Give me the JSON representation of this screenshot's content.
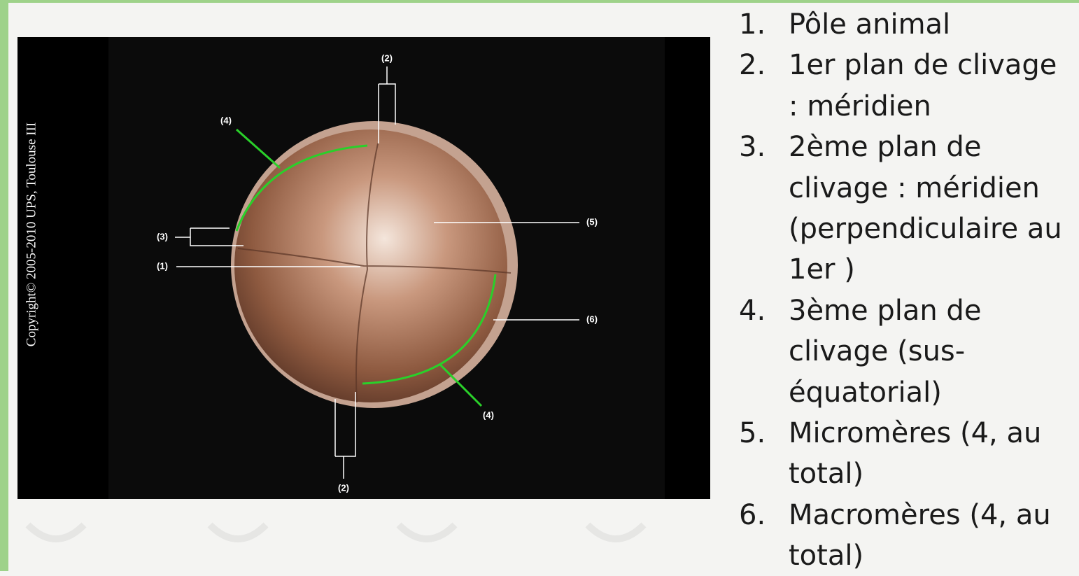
{
  "figure": {
    "copyright": "Copyright© 2005-2010 UPS, Toulouse III",
    "labels": [
      "(2)",
      "(4)",
      "(3)",
      "(1)",
      "(5)",
      "(6)",
      "(4)",
      "(2)"
    ]
  },
  "list": {
    "items": [
      {
        "number": "1.",
        "lines": [
          "Pôle animal"
        ]
      },
      {
        "number": "2.",
        "lines": [
          "1er plan de clivage",
          ": méridien"
        ]
      },
      {
        "number": "3.",
        "lines": [
          "2ème plan de",
          "clivage : méridien",
          "(perpendiculaire au",
          "1er )"
        ]
      },
      {
        "number": "4.",
        "lines": [
          "3ème plan de",
          "clivage (sus-",
          "équatorial)"
        ]
      },
      {
        "number": "5.",
        "lines": [
          "Micromères (4, au",
          "total)"
        ]
      },
      {
        "number": "6.",
        "lines": [
          "Macromères (4, au",
          "total)"
        ]
      }
    ]
  }
}
